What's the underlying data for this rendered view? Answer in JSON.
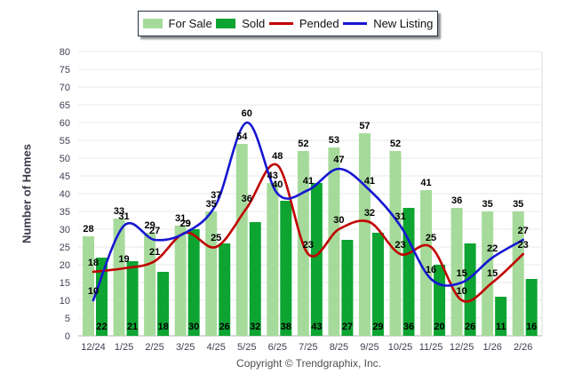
{
  "legend": {
    "items": [
      {
        "label": "For Sale",
        "marker": "swatch",
        "color": "#a6da9b"
      },
      {
        "label": "Sold",
        "marker": "swatch",
        "color": "#0da432"
      },
      {
        "label": "Pended",
        "marker": "line",
        "color": "#c00000"
      },
      {
        "label": "New Listing",
        "marker": "line",
        "color": "#1616d2"
      }
    ]
  },
  "footer": {
    "copyright": "Copyright © Trendgraphix, Inc."
  },
  "colors": {
    "axis_text": "#3f3f54",
    "value_label": "#000000",
    "gridline": "#eaeaea",
    "axis_line": "#b0b0b0",
    "plot_right_border": "#dcdcdc"
  },
  "chart_data": {
    "type": "bar+line combo",
    "title": "",
    "ylabel": "Number of Homes",
    "xlabel": "",
    "ylim": [
      0,
      80
    ],
    "ytick_step": 5,
    "grid": true,
    "legend_position": "top-center",
    "categories": [
      "12/24",
      "1/25",
      "2/25",
      "3/25",
      "4/25",
      "5/25",
      "6/25",
      "7/25",
      "8/25",
      "9/25",
      "10/25",
      "11/25",
      "12/25",
      "1/26",
      "2/26"
    ],
    "series": [
      {
        "name": "For Sale",
        "type": "bar",
        "color": "#a6da9b",
        "label_position": "above-bar",
        "values": [
          28,
          33,
          29,
          31,
          35,
          54,
          43,
          52,
          53,
          57,
          52,
          41,
          36,
          35,
          35
        ]
      },
      {
        "name": "Sold",
        "type": "bar",
        "color": "#0da432",
        "label_position": "inside-base",
        "values": [
          22,
          21,
          18,
          30,
          26,
          32,
          38,
          43,
          27,
          29,
          36,
          20,
          26,
          11,
          16
        ]
      },
      {
        "name": "Pended",
        "type": "line",
        "color": "#c00000",
        "label_position": "above-point",
        "values": [
          18,
          19,
          21,
          29,
          25,
          36,
          48,
          23,
          30,
          32,
          23,
          25,
          10,
          15,
          23
        ]
      },
      {
        "name": "New Listing",
        "type": "line",
        "color": "#1616d2",
        "label_position": "above-point",
        "values": [
          10,
          31,
          27,
          29,
          37,
          60,
          40,
          41,
          47,
          41,
          31,
          16,
          15,
          22,
          27
        ]
      }
    ]
  }
}
